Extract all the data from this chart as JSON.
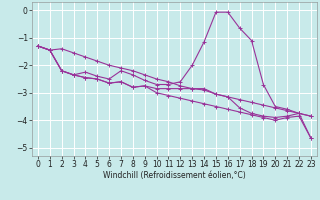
{
  "x": [
    0,
    1,
    2,
    3,
    4,
    5,
    6,
    7,
    8,
    9,
    10,
    11,
    12,
    13,
    14,
    15,
    16,
    17,
    18,
    19,
    20,
    21,
    22,
    23
  ],
  "line1": [
    -1.3,
    -1.45,
    -1.4,
    -1.55,
    -1.7,
    -1.85,
    -2.0,
    -2.1,
    -2.2,
    -2.35,
    -2.5,
    -2.6,
    -2.75,
    -2.85,
    -2.9,
    -3.05,
    -3.15,
    -3.25,
    -3.35,
    -3.45,
    -3.55,
    -3.65,
    -3.75,
    -3.85
  ],
  "line2": [
    -1.3,
    -1.45,
    -2.2,
    -2.35,
    -2.25,
    -2.4,
    -2.5,
    -2.2,
    -2.35,
    -2.55,
    -2.7,
    -2.7,
    -2.6,
    -2.0,
    -1.15,
    -0.07,
    -0.07,
    -0.65,
    -1.1,
    -2.7,
    -3.5,
    -3.6,
    -3.75,
    -3.85
  ],
  "line3": [
    -1.3,
    -1.45,
    -2.2,
    -2.35,
    -2.45,
    -2.5,
    -2.65,
    -2.6,
    -2.8,
    -2.75,
    -2.85,
    -2.85,
    -2.85,
    -2.85,
    -2.85,
    -3.05,
    -3.15,
    -3.55,
    -3.75,
    -3.85,
    -3.9,
    -3.85,
    -3.75,
    -4.65
  ],
  "line4": [
    -1.3,
    -1.45,
    -2.2,
    -2.35,
    -2.45,
    -2.5,
    -2.65,
    -2.6,
    -2.8,
    -2.75,
    -3.0,
    -3.1,
    -3.2,
    -3.3,
    -3.4,
    -3.5,
    -3.6,
    -3.7,
    -3.8,
    -3.9,
    -4.0,
    -3.9,
    -3.85,
    -4.65
  ],
  "background_color": "#c8eaea",
  "line_color": "#993399",
  "grid_color": "#aed4d4",
  "xlim": [
    -0.5,
    23.5
  ],
  "ylim": [
    -5.3,
    0.3
  ],
  "xlabel": "Windchill (Refroidissement éolien,°C)",
  "yticks": [
    0,
    -1,
    -2,
    -3,
    -4,
    -5
  ],
  "xticks": [
    0,
    1,
    2,
    3,
    4,
    5,
    6,
    7,
    8,
    9,
    10,
    11,
    12,
    13,
    14,
    15,
    16,
    17,
    18,
    19,
    20,
    21,
    22,
    23
  ],
  "xlabel_fontsize": 5.5,
  "tick_fontsize": 5.5,
  "linewidth": 0.8,
  "markersize": 2.5
}
